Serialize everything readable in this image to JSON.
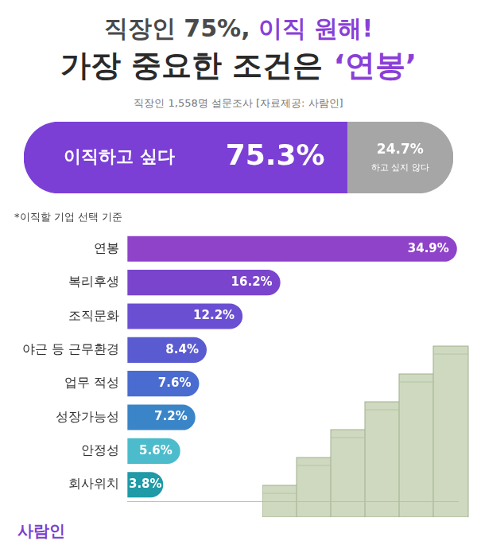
{
  "header": {
    "title": [
      [
        "직장인 75%, ",
        "이직 원해!"
      ],
      [
        "가장 중요한 조건은 ",
        "‘연봉’"
      ]
    ],
    "subtitle": "직장인 1,558명 설문조사 [자료제공: 사람인]"
  },
  "chart_data": [
    {
      "type": "bar",
      "orientation": "horizontal",
      "stacked": true,
      "categories": [
        null
      ],
      "series": [
        {
          "name": "이직하고 싶다",
          "color": "#7b3fd6",
          "values": [
            75.3
          ],
          "value_labels": [
            "75.3%"
          ]
        },
        {
          "name": "하고 싶지 않다",
          "color": "#a6a6a6",
          "values": [
            24.7
          ],
          "value_labels": [
            "24.7%"
          ]
        }
      ],
      "xlim": [
        0,
        100
      ],
      "grid": false,
      "tick_labels": false,
      "data_labels": true
    },
    {
      "type": "bar",
      "orientation": "horizontal",
      "title": "*이직할 기업 선택 기준",
      "categories": [
        "연봉",
        "복리후생",
        "조직문화",
        "야근 등 근무환경",
        "업무 적성",
        "성장가능성",
        "안정성",
        "회사위치"
      ],
      "values": [
        34.9,
        16.2,
        12.2,
        8.4,
        7.6,
        7.2,
        5.6,
        3.8
      ],
      "value_labels": [
        "34.9%",
        "16.2%",
        "12.2%",
        "8.4%",
        "7.6%",
        "7.2%",
        "5.6%",
        "3.8%"
      ],
      "colors": [
        "#8e43c9",
        "#7a45cc",
        "#6a4fd2",
        "#5a5bd0",
        "#4a6bd0",
        "#3a84c8",
        "#4cbccc",
        "#1f9aa6"
      ],
      "xlim": [
        0,
        35
      ],
      "grid": false,
      "tick_labels": "y",
      "data_labels": true
    }
  ],
  "footer": {
    "logo": "사람인"
  }
}
